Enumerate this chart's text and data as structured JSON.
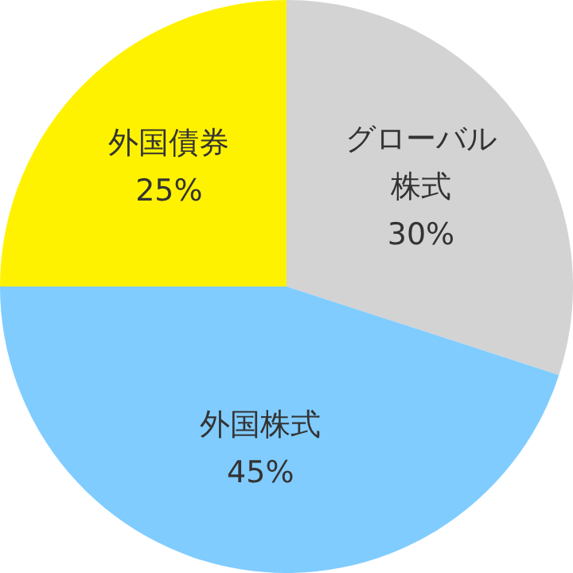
{
  "chart_data": {
    "type": "pie",
    "categories": [
      "グローバル株式",
      "外国株式",
      "外国債券"
    ],
    "values": [
      30,
      45,
      25
    ],
    "colors": [
      "#d3d3d3",
      "#80ccff",
      "#fff200"
    ],
    "value_labels": [
      "30%",
      "45%",
      "25%"
    ]
  }
}
